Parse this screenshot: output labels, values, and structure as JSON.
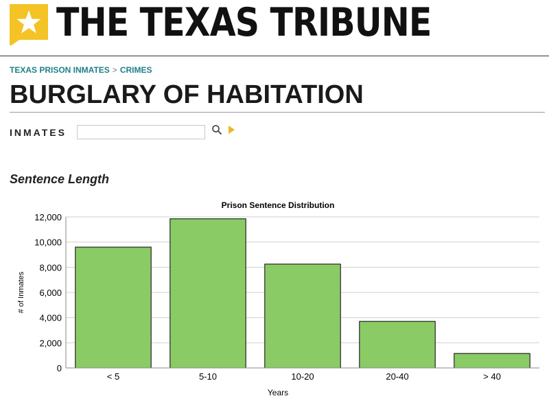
{
  "brand": {
    "name": "THE TEXAS TRIBUNE",
    "accent": "#f4c325"
  },
  "breadcrumb": {
    "parent": "TEXAS PRISON INMATES",
    "separator": ">",
    "current": "CRIMES"
  },
  "page": {
    "title": "BURGLARY OF HABITATION"
  },
  "search": {
    "label": "INMATES",
    "value": ""
  },
  "section": {
    "title": "Sentence Length"
  },
  "chart_data": {
    "type": "bar",
    "title": "Prison Sentence Distribution",
    "xlabel": "Years",
    "ylabel": "# of Inmates",
    "categories": [
      "< 5",
      "5-10",
      "10-20",
      "20-40",
      "> 40"
    ],
    "values": [
      9600,
      11850,
      8250,
      3700,
      1150
    ],
    "ylim": [
      0,
      12000
    ],
    "yticks": [
      0,
      2000,
      4000,
      6000,
      8000,
      10000,
      12000
    ],
    "ytick_labels": [
      "0",
      "2,000",
      "4,000",
      "6,000",
      "8,000",
      "10,000",
      "12,000"
    ],
    "grid": true,
    "legend": "none",
    "bar_color": "#8bcb66"
  }
}
